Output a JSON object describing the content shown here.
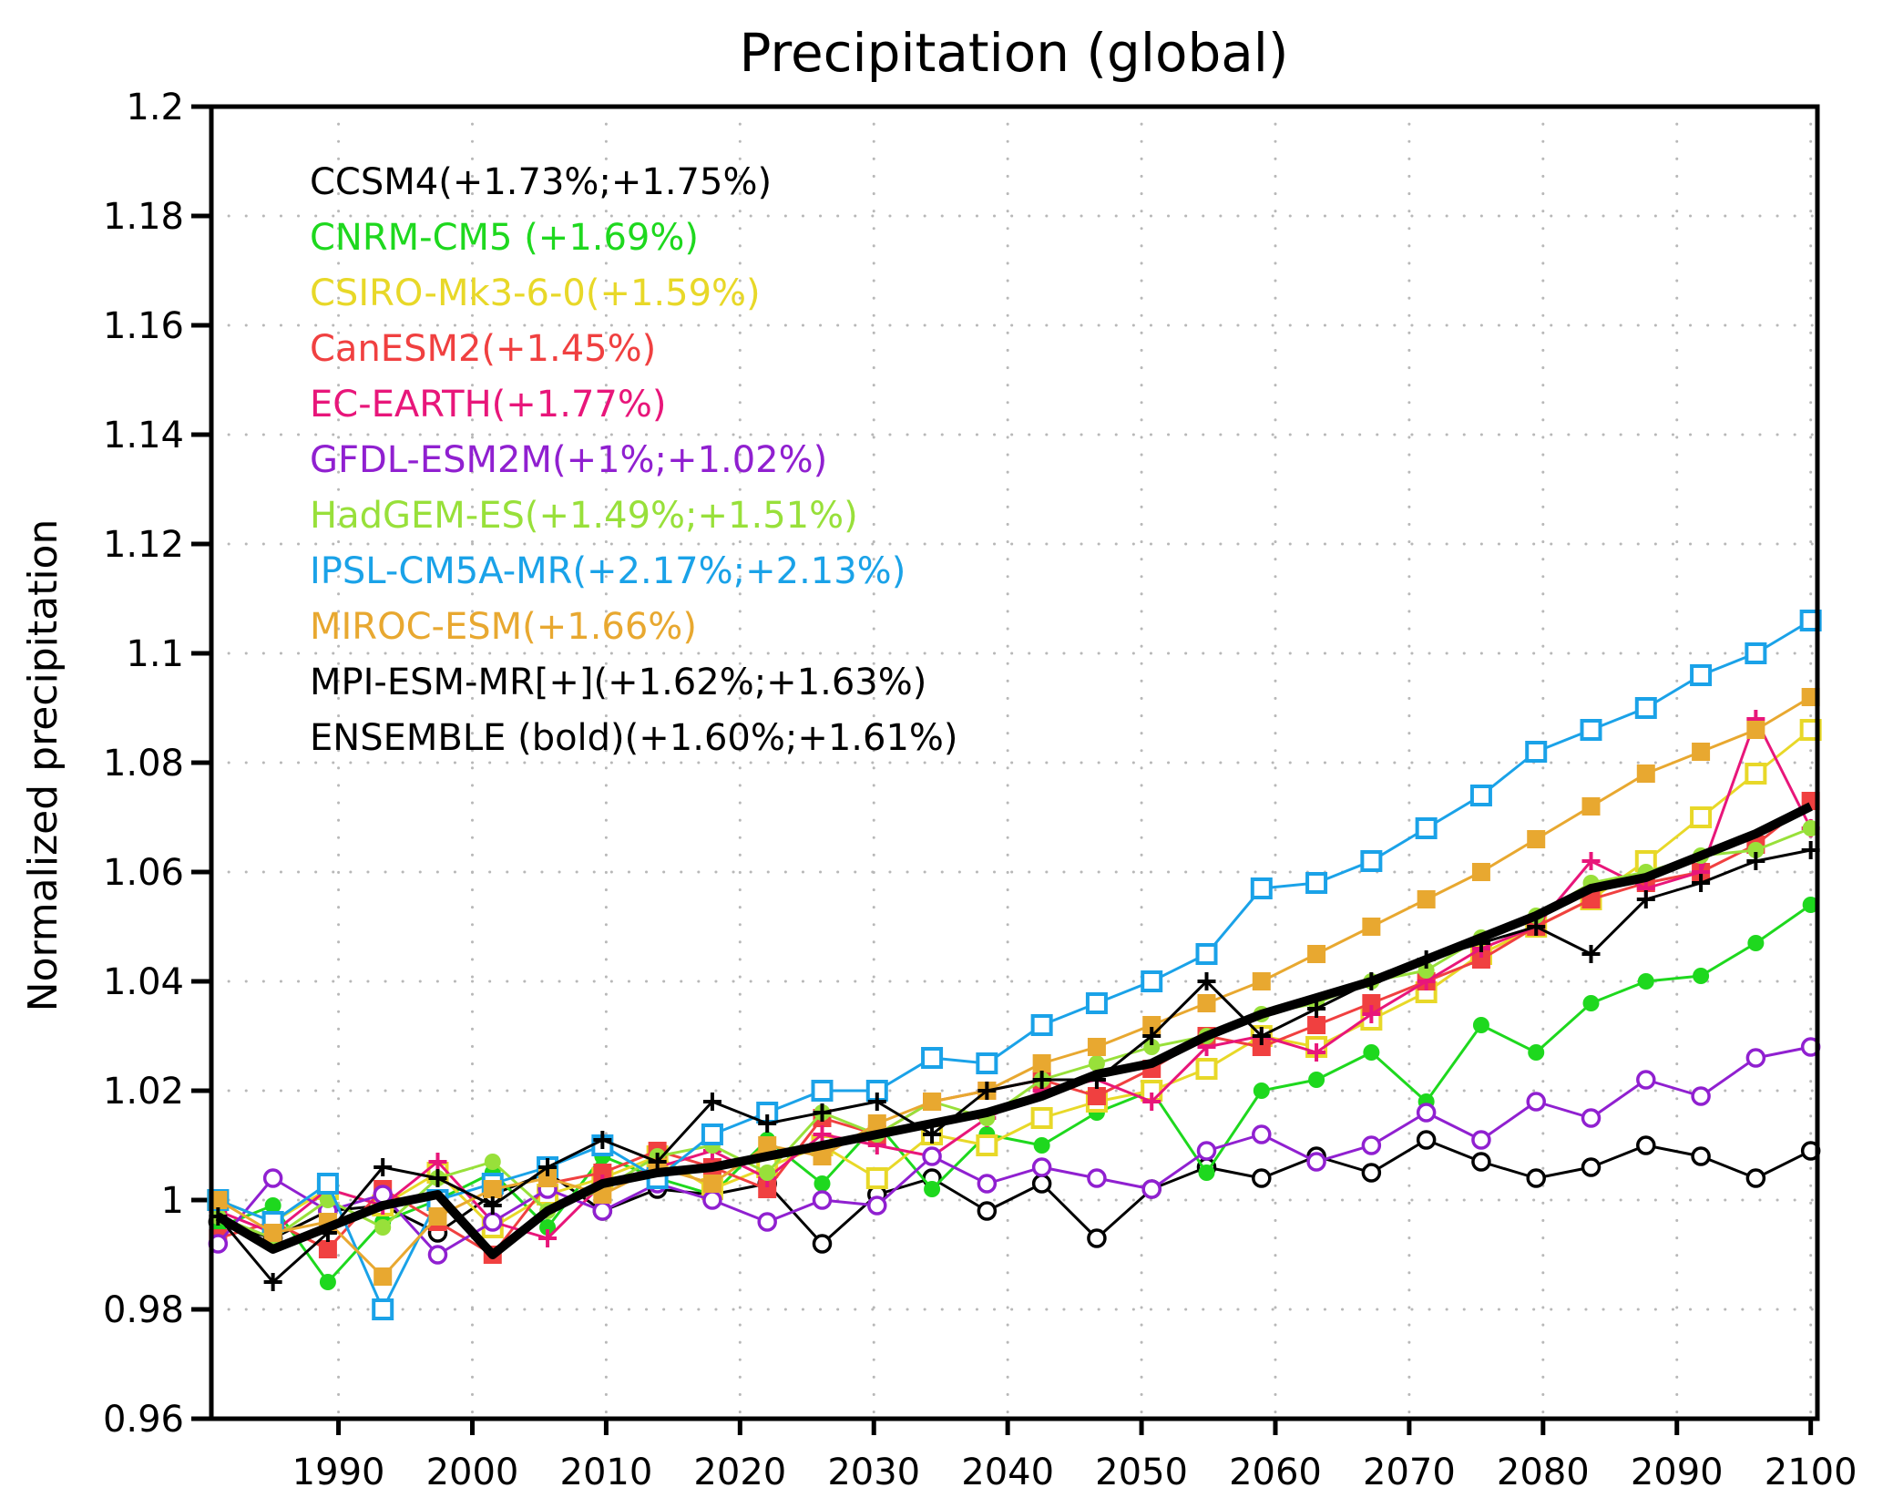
{
  "chart_data": {
    "type": "line",
    "title": "Precipitation (global)",
    "xlabel": "",
    "ylabel": "Normalized precipitation",
    "xlim": [
      1980.5,
      2100.5
    ],
    "ylim": [
      0.96,
      1.2
    ],
    "grid": true,
    "legend_placement": "top-left",
    "x_ticks": [
      1990,
      2000,
      2010,
      2020,
      2030,
      2040,
      2050,
      2060,
      2070,
      2080,
      2090,
      2100
    ],
    "x_tick_labels": [
      "1990",
      "2000",
      "2010",
      "2020",
      "2030",
      "2040",
      "2050",
      "2060",
      "2070",
      "2080",
      "2090",
      "2100"
    ],
    "y_ticks": [
      0.96,
      0.98,
      1.0,
      1.02,
      1.04,
      1.06,
      1.08,
      1.1,
      1.12,
      1.14,
      1.16,
      1.18,
      1.2
    ],
    "y_tick_labels": [
      "0.96",
      "0.98",
      "1",
      "1.02",
      "1.04",
      "1.06",
      "1.08",
      "1.1",
      "1.12",
      "1.14",
      "1.16",
      "1.18",
      "1.2"
    ],
    "x_start": 1981,
    "x_step": 10,
    "series": [
      {
        "name": "CCSM4",
        "legend": "CCSM4(+1.73%;+1.75%)",
        "color": "#000000",
        "marker": "open-circle",
        "values": [
          0.996,
          0.993,
          0.998,
          0.999,
          0.994,
          1.001,
          1.005,
          0.998,
          1.002,
          1.001,
          1.003,
          0.992,
          1.001,
          1.004,
          0.998,
          1.003,
          0.993,
          1.002,
          1.006,
          1.004,
          1.008,
          1.005,
          1.011,
          1.007,
          1.004,
          1.006,
          1.01,
          1.008,
          1.004,
          1.009
        ]
      },
      {
        "name": "CNRM-CM5",
        "legend": "CNRM-CM5 (+1.69%)",
        "color": "#1ed81e",
        "marker": "filled-circle",
        "values": [
          0.995,
          0.999,
          0.985,
          0.996,
          1.0,
          1.005,
          0.995,
          1.008,
          1.004,
          1.001,
          1.011,
          1.003,
          1.014,
          1.002,
          1.012,
          1.01,
          1.016,
          1.02,
          1.005,
          1.02,
          1.022,
          1.027,
          1.018,
          1.032,
          1.027,
          1.036,
          1.04,
          1.041,
          1.047,
          1.054
        ]
      },
      {
        "name": "CSIRO-Mk3-6-0",
        "legend": "CSIRO-Mk3-6-0(+1.59%)",
        "color": "#e8d828",
        "marker": "open-square",
        "values": [
          1.0,
          0.996,
          1.002,
          0.999,
          1.005,
          0.995,
          1.001,
          1.004,
          1.008,
          1.002,
          1.006,
          1.01,
          1.004,
          1.012,
          1.01,
          1.015,
          1.018,
          1.02,
          1.024,
          1.03,
          1.028,
          1.033,
          1.038,
          1.045,
          1.05,
          1.055,
          1.062,
          1.07,
          1.078,
          1.086
        ]
      },
      {
        "name": "CanESM2",
        "legend": "CanESM2(+1.45%)",
        "color": "#f04040",
        "marker": "filled-square",
        "values": [
          0.993,
          0.996,
          0.991,
          1.002,
          0.996,
          0.99,
          1.003,
          1.005,
          1.009,
          1.006,
          1.002,
          1.015,
          1.012,
          1.018,
          1.02,
          1.022,
          1.019,
          1.024,
          1.03,
          1.028,
          1.032,
          1.036,
          1.04,
          1.044,
          1.05,
          1.055,
          1.058,
          1.06,
          1.065,
          1.073
        ]
      },
      {
        "name": "EC-EARTH",
        "legend": "EC-EARTH(+1.77%)",
        "color": "#e8167a",
        "marker": "plus",
        "values": [
          0.998,
          0.994,
          1.002,
          0.999,
          1.007,
          0.996,
          0.993,
          1.003,
          1.006,
          1.009,
          1.004,
          1.012,
          1.01,
          1.008,
          1.015,
          1.02,
          1.022,
          1.018,
          1.028,
          1.03,
          1.027,
          1.034,
          1.04,
          1.046,
          1.05,
          1.062,
          1.057,
          1.06,
          1.088,
          1.068
        ]
      },
      {
        "name": "GFDL-ESM2M",
        "legend": "GFDL-ESM2M(+1%;+1.02%)",
        "color": "#9020d0",
        "marker": "open-circle",
        "values": [
          0.992,
          1.004,
          0.998,
          1.001,
          0.99,
          0.996,
          1.002,
          0.998,
          1.003,
          1.0,
          0.996,
          1.0,
          0.999,
          1.008,
          1.003,
          1.006,
          1.004,
          1.002,
          1.009,
          1.012,
          1.007,
          1.01,
          1.016,
          1.011,
          1.018,
          1.015,
          1.022,
          1.019,
          1.026,
          1.028
        ]
      },
      {
        "name": "HadGEM-ES",
        "legend": "HadGEM-ES(+1.49%;+1.51%)",
        "color": "#98e03a",
        "marker": "filled-circle",
        "values": [
          0.997,
          0.993,
          1.0,
          0.995,
          1.004,
          1.007,
          0.998,
          1.002,
          1.008,
          1.01,
          1.005,
          1.016,
          1.012,
          1.018,
          1.015,
          1.022,
          1.025,
          1.028,
          1.03,
          1.034,
          1.036,
          1.04,
          1.042,
          1.048,
          1.052,
          1.058,
          1.06,
          1.063,
          1.064,
          1.068
        ]
      },
      {
        "name": "IPSL-CM5A-MR",
        "legend": "IPSL-CM5A-MR(+2.17%;+2.13%)",
        "color": "#1aa2e8",
        "marker": "open-square",
        "values": [
          1.0,
          0.996,
          1.003,
          0.98,
          1.0,
          1.003,
          1.006,
          1.01,
          1.004,
          1.012,
          1.016,
          1.02,
          1.02,
          1.026,
          1.025,
          1.032,
          1.036,
          1.04,
          1.045,
          1.057,
          1.058,
          1.062,
          1.068,
          1.074,
          1.082,
          1.086,
          1.09,
          1.096,
          1.1,
          1.106
        ]
      },
      {
        "name": "MIROC-ESM",
        "legend": "MIROC-ESM(+1.66%)",
        "color": "#e8a830",
        "marker": "filled-square",
        "values": [
          1.0,
          0.994,
          0.996,
          0.986,
          0.997,
          1.002,
          1.004,
          1.001,
          1.006,
          1.003,
          1.01,
          1.008,
          1.014,
          1.018,
          1.02,
          1.025,
          1.028,
          1.032,
          1.036,
          1.04,
          1.045,
          1.05,
          1.055,
          1.06,
          1.066,
          1.072,
          1.078,
          1.082,
          1.086,
          1.092
        ]
      },
      {
        "name": "MPI-ESM-MR",
        "legend": "MPI-ESM-MR[+](+1.62%;+1.63%)",
        "color": "#000000",
        "marker": "plus",
        "values": [
          0.997,
          0.985,
          0.994,
          1.006,
          1.004,
          0.999,
          1.006,
          1.011,
          1.007,
          1.018,
          1.014,
          1.016,
          1.018,
          1.012,
          1.02,
          1.022,
          1.022,
          1.03,
          1.04,
          1.03,
          1.035,
          1.04,
          1.044,
          1.047,
          1.05,
          1.045,
          1.055,
          1.058,
          1.062,
          1.064
        ]
      },
      {
        "name": "ENSEMBLE",
        "legend": "ENSEMBLE (bold)(+1.60%;+1.61%)",
        "color": "#000000",
        "marker": "none",
        "bold": true,
        "values": [
          0.997,
          0.991,
          0.995,
          0.999,
          1.001,
          0.99,
          0.998,
          1.003,
          1.005,
          1.006,
          1.008,
          1.01,
          1.012,
          1.014,
          1.016,
          1.019,
          1.023,
          1.025,
          1.03,
          1.034,
          1.037,
          1.04,
          1.044,
          1.048,
          1.052,
          1.057,
          1.059,
          1.063,
          1.067,
          1.072
        ]
      }
    ]
  }
}
